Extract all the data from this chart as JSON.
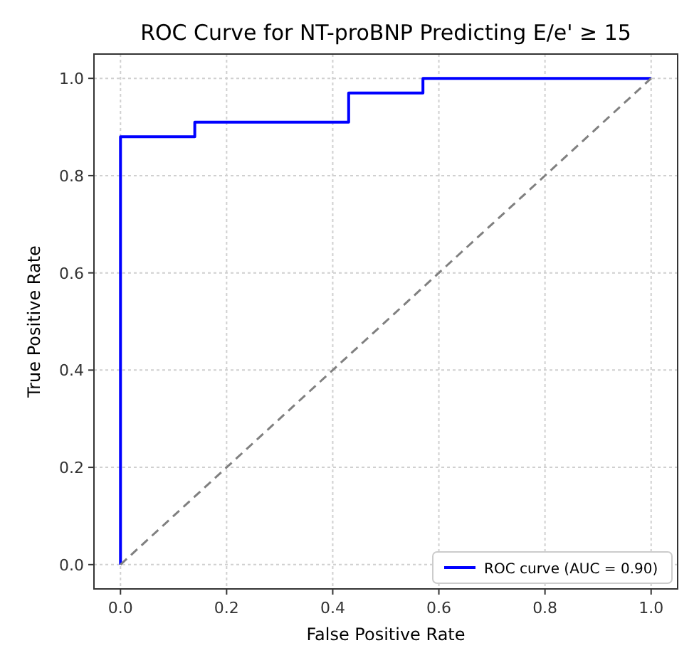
{
  "chart_data": {
    "type": "line",
    "title": "ROC Curve for NT-proBNP Predicting E/e' ≥ 15",
    "xlabel": "False Positive Rate",
    "ylabel": "True Positive Rate",
    "xlim": [
      -0.05,
      1.05
    ],
    "ylim": [
      -0.05,
      1.05
    ],
    "xticks": [
      {
        "value": 0,
        "label": "0.0"
      },
      {
        "value": 0.2,
        "label": "0.2"
      },
      {
        "value": 0.4,
        "label": "0.4"
      },
      {
        "value": 0.6,
        "label": "0.6"
      },
      {
        "value": 0.8,
        "label": "0.8"
      },
      {
        "value": 1,
        "label": "1.0"
      }
    ],
    "yticks": [
      {
        "value": 0,
        "label": "0.0"
      },
      {
        "value": 0.2,
        "label": "0.2"
      },
      {
        "value": 0.4,
        "label": "0.4"
      },
      {
        "value": 0.6,
        "label": "0.6"
      },
      {
        "value": 0.8,
        "label": "0.8"
      },
      {
        "value": 1,
        "label": "1.0"
      }
    ],
    "grid": true,
    "legend": "bottom right",
    "marker": "none",
    "series": [
      {
        "name": "ROC curve (AUC = 0.90)",
        "color": "#0000ff",
        "line_style": "solid",
        "x": [
          0,
          0,
          0.14,
          0.14,
          0.43,
          0.43,
          0.57,
          0.57,
          1
        ],
        "values": [
          0,
          0.88,
          0.88,
          0.91,
          0.91,
          0.97,
          0.97,
          1,
          1
        ]
      },
      {
        "color": "#808080",
        "line_style": "dashed",
        "x": [
          0,
          1
        ],
        "values": [
          0,
          1
        ]
      }
    ]
  }
}
